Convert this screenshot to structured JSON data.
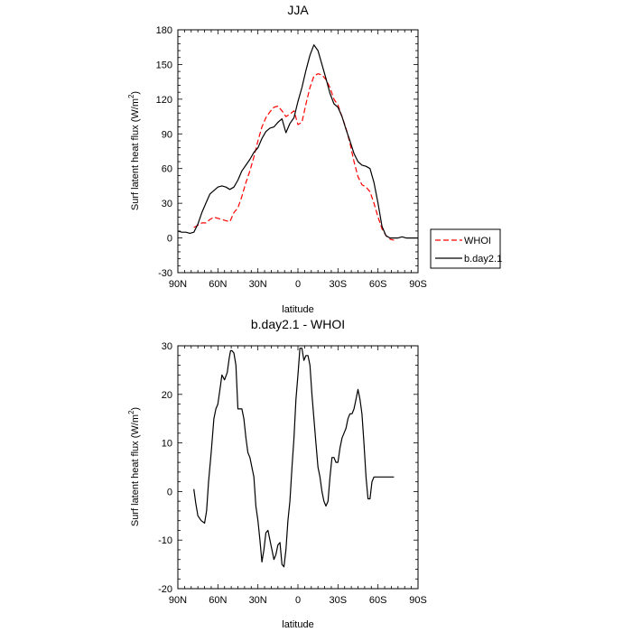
{
  "chart_data": [
    {
      "type": "line",
      "title": "JJA",
      "xlabel": "latitude",
      "ylabel": "Surf latent heat flux (W/m",
      "ylabel_superscript": "2",
      "ylabel_suffix": ")",
      "xlim": [
        90,
        -90
      ],
      "ylim": [
        -30,
        180
      ],
      "x_ticks": [
        90,
        60,
        30,
        0,
        -30,
        -60,
        -90
      ],
      "x_tick_labels": [
        "90N",
        "60N",
        "30N",
        "0",
        "30S",
        "60S",
        "90S"
      ],
      "y_ticks": [
        -30,
        0,
        30,
        60,
        90,
        120,
        150,
        180
      ],
      "y_tick_labels": [
        "-30",
        "0",
        "30",
        "60",
        "90",
        "120",
        "150",
        "180"
      ],
      "legend_position": "outside-right",
      "series": [
        {
          "name": "WHOI",
          "color": "#ff0000",
          "dash": "dashed",
          "x": [
            78,
            75,
            72,
            69,
            66,
            63,
            60,
            57,
            54,
            51,
            48,
            45,
            42,
            39,
            36,
            33,
            30,
            27,
            24,
            21,
            18,
            15,
            12,
            9,
            6,
            3,
            0,
            -3,
            -6,
            -9,
            -12,
            -15,
            -18,
            -21,
            -24,
            -27,
            -30,
            -33,
            -36,
            -39,
            -42,
            -45,
            -48,
            -51,
            -54,
            -57,
            -60,
            -63,
            -66,
            -69,
            -72
          ],
          "y": [
            9,
            11,
            13,
            13,
            16,
            18,
            17,
            16,
            15,
            14,
            22,
            26,
            36,
            48,
            58,
            70,
            84,
            96,
            104,
            109,
            113,
            114,
            110,
            105,
            107,
            110,
            98,
            100,
            116,
            130,
            140,
            142,
            141,
            137,
            130,
            120,
            115,
            105,
            95,
            82,
            66,
            53,
            46,
            44,
            40,
            30,
            18,
            8,
            2,
            -1,
            -2
          ]
        },
        {
          "name": "b.day2.1",
          "color": "#000000",
          "dash": "solid",
          "x": [
            90,
            87,
            84,
            81,
            78,
            75,
            72,
            69,
            66,
            63,
            60,
            57,
            54,
            51,
            48,
            45,
            42,
            39,
            36,
            33,
            30,
            27,
            24,
            21,
            18,
            15,
            12,
            9,
            6,
            3,
            0,
            -3,
            -6,
            -9,
            -12,
            -15,
            -18,
            -21,
            -24,
            -27,
            -30,
            -33,
            -36,
            -39,
            -42,
            -45,
            -48,
            -51,
            -54,
            -57,
            -60,
            -63,
            -66,
            -69,
            -72,
            -75,
            -78,
            -81,
            -84,
            -87,
            -90
          ],
          "y": [
            6,
            5,
            5,
            4,
            5,
            12,
            22,
            30,
            38,
            41,
            44,
            45,
            44,
            42,
            44,
            50,
            58,
            63,
            68,
            74,
            78,
            86,
            92,
            95,
            96,
            100,
            103,
            91,
            99,
            104,
            118,
            130,
            145,
            158,
            167,
            162,
            150,
            138,
            125,
            116,
            113,
            105,
            94,
            84,
            73,
            66,
            63,
            62,
            60,
            48,
            30,
            10,
            2,
            0,
            0,
            0,
            1,
            0,
            0,
            0,
            0
          ]
        }
      ]
    },
    {
      "type": "line",
      "title": "b.day2.1 - WHOI",
      "xlabel": "latitude",
      "ylabel": "Surf latent heat flux (W/m",
      "ylabel_superscript": "2",
      "ylabel_suffix": ")",
      "xlim": [
        90,
        -90
      ],
      "ylim": [
        -20,
        30
      ],
      "x_ticks": [
        90,
        60,
        30,
        0,
        -30,
        -60,
        -90
      ],
      "x_tick_labels": [
        "90N",
        "60N",
        "30N",
        "0",
        "30S",
        "60S",
        "90S"
      ],
      "y_ticks": [
        -20,
        -10,
        0,
        10,
        20,
        30
      ],
      "y_tick_labels": [
        "-20",
        "-10",
        "0",
        "10",
        "20",
        "30"
      ],
      "series": [
        {
          "name": "",
          "color": "#000000",
          "dash": "solid",
          "x": [
            78,
            76.5,
            75,
            72.5,
            70,
            68.5,
            67,
            65,
            63,
            61.5,
            60,
            58.5,
            57,
            55,
            53,
            51.5,
            50.5,
            49.5,
            48,
            46.5,
            45,
            43.5,
            42,
            40.5,
            39,
            37.5,
            36,
            34.5,
            33,
            31.5,
            30,
            28.5,
            27,
            25.5,
            24,
            22.5,
            21,
            19.5,
            18,
            16.5,
            15,
            13.5,
            12,
            10.5,
            9,
            7.5,
            6,
            4.5,
            3,
            1.5,
            0,
            -1.5,
            -3,
            -4.5,
            -6,
            -7.5,
            -9,
            -10.5,
            -12,
            -13.5,
            -15,
            -16.5,
            -18,
            -19.5,
            -21,
            -22.5,
            -24,
            -25.5,
            -27,
            -28.5,
            -30,
            -31.5,
            -33,
            -34.5,
            -36,
            -37.5,
            -39,
            -40.5,
            -42,
            -43.5,
            -45,
            -46.5,
            -48,
            -49.5,
            -51,
            -52.5,
            -54,
            -55.5,
            -57,
            -58.5,
            -60,
            -61.5,
            -63,
            -64.5,
            -66,
            -67.5,
            -69,
            -70.5,
            -72
          ],
          "y": [
            0.5,
            -2.5,
            -5,
            -6,
            -6.5,
            -4,
            2,
            8,
            15,
            17,
            18,
            21,
            24,
            23,
            24.5,
            27.5,
            29,
            29,
            28.5,
            26,
            17,
            17,
            17,
            15,
            11,
            8,
            7,
            5,
            3,
            -3,
            -6,
            -10,
            -14.5,
            -12,
            -8.5,
            -8,
            -10,
            -12,
            -14,
            -13,
            -11,
            -10.5,
            -15,
            -15.5,
            -12,
            -6,
            -2,
            5,
            11,
            19,
            24,
            29.5,
            29.5,
            27,
            28,
            28,
            26,
            20,
            15,
            10,
            5,
            3,
            0,
            -2,
            -3,
            -2,
            3,
            7,
            7,
            6,
            6,
            9,
            11,
            12,
            13,
            15,
            16,
            16,
            17,
            19,
            21,
            19,
            16,
            10,
            3,
            -1.5,
            -1.5,
            2,
            3,
            3,
            3,
            3,
            3,
            3,
            3,
            3,
            3,
            3,
            3
          ]
        }
      ]
    }
  ]
}
